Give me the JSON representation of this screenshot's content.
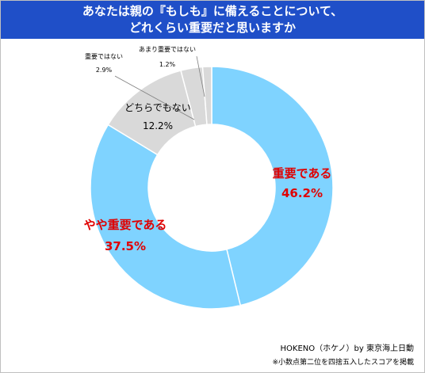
{
  "chart": {
    "title_line1": "あなたは親の『もしも』に備えることについて、",
    "title_line2": "どれくらい重要だと思いますか"
  },
  "chart_data": {
    "type": "pie",
    "subtype": "donut",
    "title": "あなたは親の『もしも』に備えることについて、どれくらい重要だと思いますか",
    "labels": [
      "重要である",
      "やや重要である",
      "どちらでもない",
      "重要ではない",
      "あまり重要ではない"
    ],
    "values": [
      46.2,
      37.5,
      12.2,
      2.9,
      1.2
    ],
    "value_labels": [
      "46.2%",
      "37.5%",
      "12.2%",
      "2.9%",
      "1.2%"
    ],
    "colors": [
      "#7fd3ff",
      "#7fd3ff",
      "#d9d9d9",
      "#d9d9d9",
      "#d9d9d9"
    ],
    "label_colors": [
      "#e00000",
      "#e00000",
      "#000000",
      "#000000",
      "#000000"
    ],
    "start": "12 o'clock",
    "direction": "clockwise",
    "legend": "none"
  },
  "footer": {
    "source": "HOKENO（ホケノ）by 東京海上日動",
    "note": "※小数点第二位を四捨五入したスコアを掲載"
  }
}
